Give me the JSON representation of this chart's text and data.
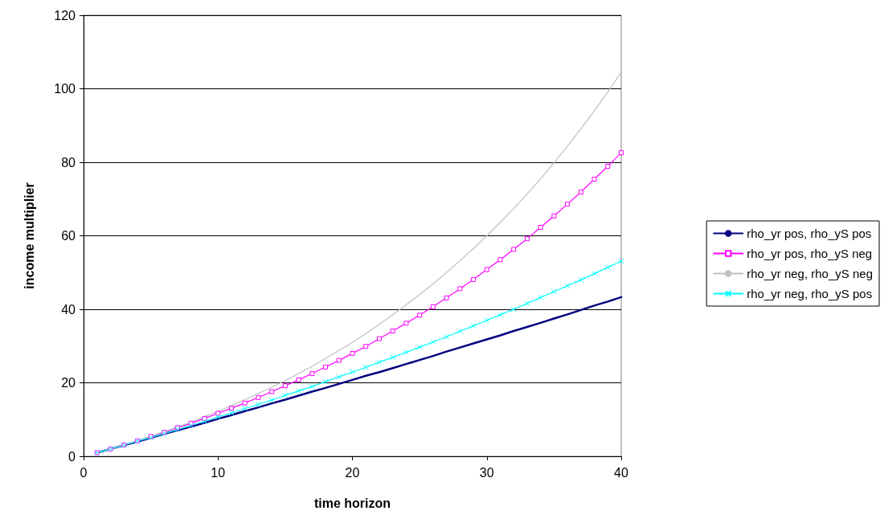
{
  "chart_data": {
    "type": "line",
    "xlabel": "time horizon",
    "ylabel": "income multiplier",
    "x": [
      1,
      2,
      3,
      4,
      5,
      6,
      7,
      8,
      9,
      10,
      11,
      12,
      13,
      14,
      15,
      16,
      17,
      18,
      19,
      20,
      21,
      22,
      23,
      24,
      25,
      26,
      27,
      28,
      29,
      30,
      31,
      32,
      33,
      34,
      35,
      36,
      37,
      38,
      39,
      40
    ],
    "series": [
      {
        "name": "rho_yr pos, rho_yS pos",
        "color": "#000080",
        "marker": "none",
        "values": [
          1,
          2.0,
          3.0,
          4.0,
          5.0,
          6.1,
          7.1,
          8.1,
          9.1,
          10.2,
          11.2,
          12.3,
          13.3,
          14.4,
          15.4,
          16.5,
          17.6,
          18.6,
          19.7,
          20.8,
          21.9,
          22.9,
          24.0,
          25.1,
          26.2,
          27.3,
          28.5,
          29.6,
          30.7,
          31.8,
          32.9,
          34.1,
          35.2,
          36.3,
          37.5,
          38.6,
          39.8,
          41.0,
          42.1,
          43.3
        ]
      },
      {
        "name": "rho_yr pos, rho_yS neg",
        "color": "#ff00ff",
        "marker": "square",
        "values": [
          1,
          2.0,
          3.1,
          4.2,
          5.4,
          6.5,
          7.8,
          9.0,
          10.3,
          11.7,
          13.1,
          14.5,
          16.0,
          17.6,
          19.2,
          20.8,
          22.5,
          24.3,
          26.1,
          28.0,
          29.9,
          32.0,
          34.1,
          36.2,
          38.4,
          40.7,
          43.1,
          45.6,
          48.1,
          50.8,
          53.5,
          56.3,
          59.2,
          62.3,
          65.4,
          68.6,
          71.9,
          75.4,
          78.9,
          82.6
        ]
      },
      {
        "name": "rho_yr neg, rho_yS neg",
        "color": "#c0c0c0",
        "marker": "none",
        "values": [
          1,
          2.0,
          3.1,
          4.3,
          5.5,
          6.7,
          8.0,
          9.3,
          10.8,
          12.2,
          13.8,
          15.4,
          17.1,
          18.8,
          20.6,
          22.5,
          24.5,
          26.6,
          28.8,
          31.0,
          33.4,
          35.9,
          38.5,
          41.2,
          44.0,
          46.9,
          50.0,
          53.2,
          56.5,
          60.0,
          63.6,
          67.4,
          71.4,
          75.5,
          79.9,
          84.4,
          89.1,
          94.0,
          99.1,
          104.5
        ]
      },
      {
        "name": "rho_yr neg, rho_yS pos",
        "color": "#00ffff",
        "marker": "cross",
        "values": [
          1,
          2.0,
          3.0,
          4.1,
          5.1,
          6.2,
          7.3,
          8.4,
          9.5,
          10.7,
          11.8,
          13.0,
          14.1,
          15.3,
          16.6,
          17.8,
          19.0,
          20.3,
          21.6,
          22.9,
          24.2,
          25.6,
          26.9,
          28.3,
          29.7,
          31.1,
          32.5,
          34.0,
          35.5,
          37.0,
          38.5,
          40.0,
          41.6,
          43.2,
          44.8,
          46.4,
          48.0,
          49.7,
          51.4,
          53.1
        ]
      }
    ],
    "xlim": [
      0,
      40
    ],
    "xticks": [
      0,
      10,
      20,
      30,
      40
    ],
    "ylim": [
      0,
      120
    ],
    "yticks": [
      0,
      20,
      40,
      60,
      80,
      100,
      120
    ],
    "grid": "y",
    "legend": "right"
  }
}
